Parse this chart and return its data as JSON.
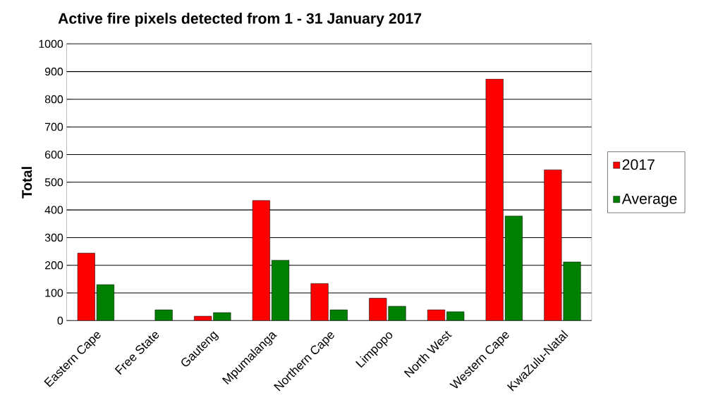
{
  "chart_data": {
    "type": "bar",
    "title": "Active fire pixels detected from 1 - 31 January 2017",
    "ylabel": "Total",
    "categories": [
      "Eastern Cape",
      "Free State",
      "Gauteng",
      "Mpumalanga",
      "Northern Cape",
      "Limpopo",
      "North West",
      "Western Cape",
      "KwaZulu-Natal"
    ],
    "series": [
      {
        "name": "2017",
        "color": "#ff0000",
        "values": [
          244,
          null,
          16,
          434,
          134,
          81,
          39,
          873,
          545
        ]
      },
      {
        "name": "Average",
        "color": "#008000",
        "values": [
          130,
          39,
          29,
          218,
          39,
          52,
          32,
          378,
          212
        ]
      }
    ],
    "ylim": [
      0,
      1000
    ],
    "yticks": [
      0,
      100,
      200,
      300,
      400,
      500,
      600,
      700,
      800,
      900,
      1000
    ],
    "grid": "y",
    "legend": "right"
  }
}
